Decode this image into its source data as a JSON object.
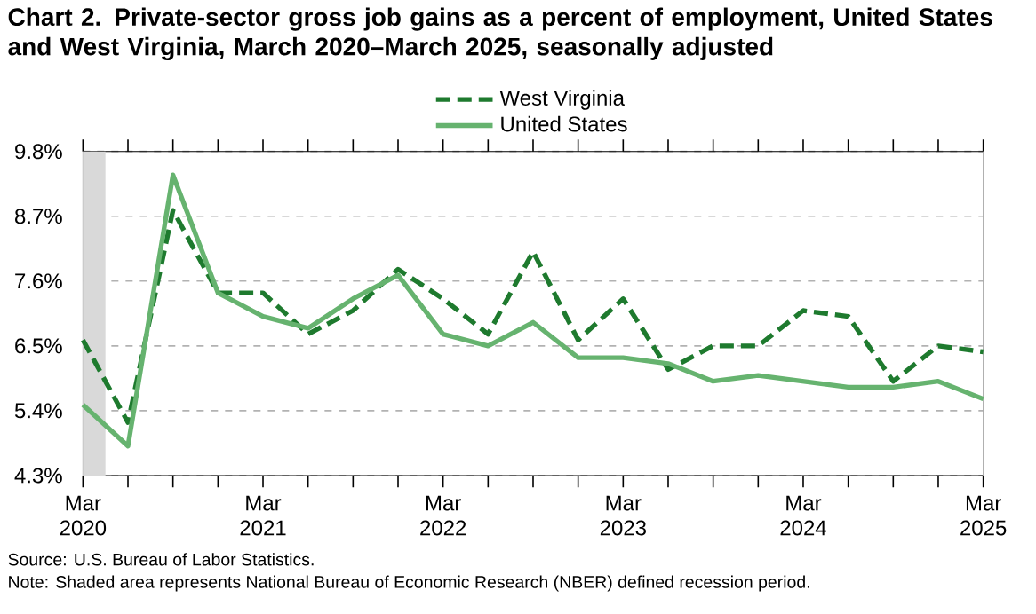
{
  "chart_data": {
    "type": "line",
    "title": "Chart 2. Private-sector gross job gains as a percent of employment, United States and West Virginia, March 2020–March 2025, seasonally adjusted",
    "x": [
      "2020-03",
      "2020-06",
      "2020-09",
      "2020-12",
      "2021-03",
      "2021-06",
      "2021-09",
      "2021-12",
      "2022-03",
      "2022-06",
      "2022-09",
      "2022-12",
      "2023-03",
      "2023-06",
      "2023-09",
      "2023-12",
      "2024-03",
      "2024-06",
      "2024-09",
      "2024-12",
      "2025-03"
    ],
    "series": [
      {
        "name": "West Virginia",
        "color": "#1e7a2e",
        "line_style": "dashed",
        "values": [
          6.6,
          5.2,
          8.8,
          7.4,
          7.4,
          6.7,
          7.1,
          7.8,
          7.3,
          6.7,
          8.1,
          6.6,
          7.3,
          6.1,
          6.5,
          6.5,
          7.1,
          7.0,
          5.9,
          6.5,
          6.4
        ]
      },
      {
        "name": "United States",
        "color": "#66b36f",
        "line_style": "solid",
        "values": [
          5.5,
          4.8,
          9.4,
          7.4,
          7.0,
          6.8,
          7.3,
          7.7,
          6.7,
          6.5,
          6.9,
          6.3,
          6.3,
          6.2,
          5.9,
          6.0,
          5.9,
          5.8,
          5.8,
          5.9,
          5.6
        ]
      }
    ],
    "xlim": [
      "2020-03",
      "2025-03"
    ],
    "xticks": [
      {
        "value": "2020-03",
        "label": "Mar 2020"
      },
      {
        "value": "2020-06",
        "label": null
      },
      {
        "value": "2020-09",
        "label": null
      },
      {
        "value": "2020-12",
        "label": null
      },
      {
        "value": "2021-03",
        "label": "Mar 2021"
      },
      {
        "value": "2021-06",
        "label": null
      },
      {
        "value": "2021-09",
        "label": null
      },
      {
        "value": "2021-12",
        "label": null
      },
      {
        "value": "2022-03",
        "label": "Mar 2022"
      },
      {
        "value": "2022-06",
        "label": null
      },
      {
        "value": "2022-09",
        "label": null
      },
      {
        "value": "2022-12",
        "label": null
      },
      {
        "value": "2023-03",
        "label": "Mar 2023"
      },
      {
        "value": "2023-06",
        "label": null
      },
      {
        "value": "2023-09",
        "label": null
      },
      {
        "value": "2023-12",
        "label": null
      },
      {
        "value": "2024-03",
        "label": "Mar 2024"
      },
      {
        "value": "2024-06",
        "label": null
      },
      {
        "value": "2024-09",
        "label": null
      },
      {
        "value": "2024-12",
        "label": null
      },
      {
        "value": "2025-03",
        "label": "Mar 2025"
      }
    ],
    "ylim": [
      4.3,
      9.8
    ],
    "yticks": [
      {
        "value": 4.3,
        "label": "4.3%"
      },
      {
        "value": 5.4,
        "label": "5.4%"
      },
      {
        "value": 6.5,
        "label": "6.5%"
      },
      {
        "value": 7.6,
        "label": "7.6%"
      },
      {
        "value": 8.7,
        "label": "8.7%"
      },
      {
        "value": 9.8,
        "label": "9.8%"
      }
    ],
    "grid": "y",
    "legend": "top",
    "bands": [
      {
        "axis": "x",
        "from": "2020-03",
        "to": "2020-04-15",
        "color": "#d9d9d9"
      }
    ],
    "annotations": [
      "Source: U.S. Bureau of Labor Statistics.",
      "Note: Shaded area represents National Bureau of Economic Research (NBER) defined recession period."
    ]
  }
}
